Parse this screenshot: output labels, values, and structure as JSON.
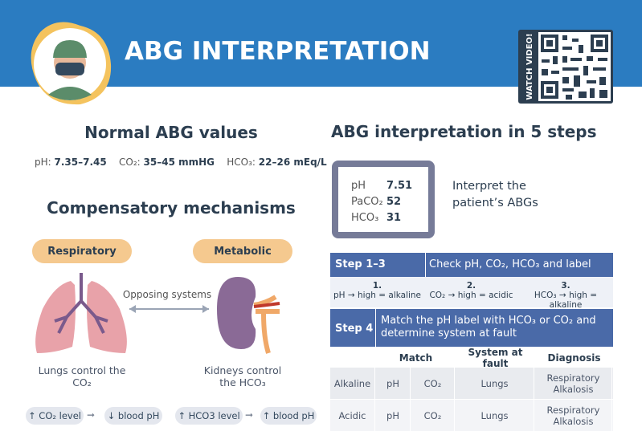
{
  "header": {
    "title": "ABG INTERPRETATION",
    "video_label": "WATCH VIDEO!"
  },
  "normal": {
    "title": "Normal ABG values",
    "items": [
      {
        "label": "pH:",
        "value": "7.35–7.45"
      },
      {
        "label": "CO₂:",
        "value": "35–45 mmHG"
      },
      {
        "label": "HCO₃:",
        "value": "22–26 mEq/L"
      }
    ]
  },
  "compensatory": {
    "title": "Compensatory mechanisms",
    "link": "Opposing systems",
    "systems": [
      {
        "name": "Respiratory",
        "caption": "Lungs control the CO₂",
        "chain": [
          "↑ CO₂ level",
          "↓ blood pH"
        ]
      },
      {
        "name": "Metabolic",
        "caption": "Kidneys control the HCO₃",
        "chain": [
          "↑ HCO3 level",
          "↑ blood pH"
        ]
      }
    ]
  },
  "steps": {
    "title": "ABG interpretation in 5 steps",
    "patient": [
      {
        "label": "pH",
        "value": 7.51
      },
      {
        "label": "PaCO₂",
        "value": 52
      },
      {
        "label": "HCO₃",
        "value": 31
      }
    ],
    "prompt": "Interpret the patient’s ABGs",
    "step13": {
      "label": "Step 1–3",
      "text": "Check pH, CO₂, HCO₃ and label",
      "items": [
        {
          "num": "1.",
          "text": "pH → high = alkaline"
        },
        {
          "num": "2.",
          "text": "CO₂ → high = acidic"
        },
        {
          "num": "3.",
          "text": "HCO₃ → high = alkaline"
        }
      ]
    },
    "step4": {
      "label": "Step 4",
      "text": "Match the pH label with HCO₃ or CO₂ and determine system at fault"
    },
    "table": {
      "headers": [
        "Match",
        "System at fault",
        "Diagnosis"
      ],
      "rows": [
        [
          "Alkaline",
          "pH",
          "CO₂",
          "Lungs",
          "Respiratory Alkalosis"
        ],
        [
          "Acidic",
          "pH",
          "CO₂",
          "Lungs",
          "Respiratory Alkalosis"
        ]
      ]
    }
  }
}
